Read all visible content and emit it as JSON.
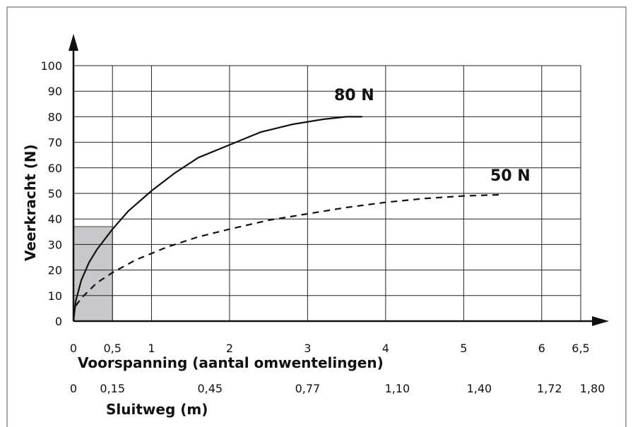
{
  "chart_data": {
    "type": "line",
    "ylabel": "Veerkracht (N)",
    "xlabel": "Voorspanning (aantal omwentelingen)",
    "secondary_xlabel": "Sluitweg (m)",
    "x_ticks": [
      {
        "value": 0,
        "label": "0"
      },
      {
        "value": 0.5,
        "label": "0,5"
      },
      {
        "value": 1,
        "label": "1"
      },
      {
        "value": 2,
        "label": "2"
      },
      {
        "value": 3,
        "label": "3"
      },
      {
        "value": 4,
        "label": "4"
      },
      {
        "value": 5,
        "label": "5"
      },
      {
        "value": 6,
        "label": "6"
      },
      {
        "value": 6.5,
        "label": "6,5"
      }
    ],
    "secondary_x_ticks": [
      {
        "value": 0,
        "label": "0"
      },
      {
        "value": 0.5,
        "label": "0,15"
      },
      {
        "value": 1.75,
        "label": "0,45"
      },
      {
        "value": 3.0,
        "label": "0,77"
      },
      {
        "value": 4.15,
        "label": "1,10"
      },
      {
        "value": 5.2,
        "label": "1,40"
      },
      {
        "value": 6.1,
        "label": "1,72"
      },
      {
        "value": 6.65,
        "label": "1,80"
      }
    ],
    "y_ticks": [
      0,
      10,
      20,
      30,
      40,
      50,
      60,
      70,
      80,
      90,
      100
    ],
    "xlim": [
      0,
      6.5
    ],
    "ylim": [
      0,
      100
    ],
    "grid": true,
    "shaded_region": {
      "x": [
        0,
        0.5
      ],
      "y": [
        0,
        37
      ]
    },
    "series": [
      {
        "name": "80 N",
        "style": "solid",
        "x": [
          0,
          0.03,
          0.1,
          0.2,
          0.3,
          0.5,
          0.7,
          1.0,
          1.3,
          1.6,
          2.0,
          2.4,
          2.8,
          3.2,
          3.5,
          3.7
        ],
        "y": [
          0,
          8,
          16,
          23,
          28,
          36,
          43,
          51,
          58,
          64,
          69,
          74,
          77,
          79,
          80,
          80
        ]
      },
      {
        "name": "50 N",
        "style": "dashed",
        "x": [
          0.03,
          0.1,
          0.2,
          0.3,
          0.5,
          0.8,
          1.2,
          1.6,
          2.0,
          2.5,
          3.0,
          3.5,
          4.0,
          4.5,
          5.0,
          5.5
        ],
        "y": [
          6,
          9,
          12,
          15,
          19,
          24,
          29,
          33,
          36,
          39.5,
          42,
          44.5,
          46.5,
          48,
          49,
          49.5
        ]
      }
    ],
    "colors": {
      "line": "#111111",
      "grid": "#222222",
      "shade": "#c8c8ca"
    }
  }
}
